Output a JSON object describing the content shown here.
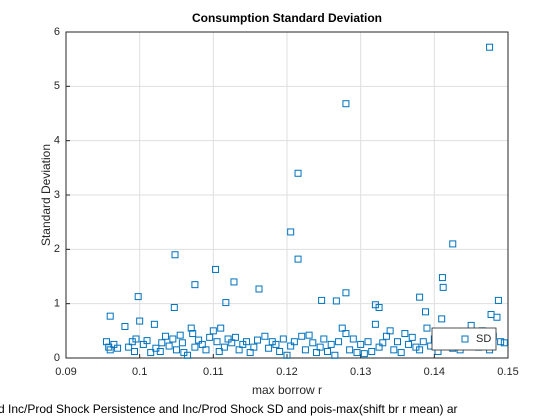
{
  "chart_data": {
    "type": "scatter",
    "title": "Consumption Standard Deviation",
    "xlabel": "max borrow r",
    "ylabel": "Standard Deviation",
    "annotations": [
      "d Inc/Prod Shock Persistence and Inc/Prod Shock SD and pois-max(shift br r mean) ar"
    ],
    "xlim": [
      0.09,
      0.15
    ],
    "xticks": [
      0.09,
      0.1,
      0.11,
      0.12,
      0.13,
      0.14,
      0.15
    ],
    "ylim": [
      0,
      6
    ],
    "yticks": [
      0,
      1,
      2,
      3,
      4,
      5,
      6
    ],
    "grid": true,
    "legend": "southeast",
    "series": [
      {
        "name": "SD",
        "color": "#0072bd",
        "x": [
          0.1475,
          0.128,
          0.1215,
          0.1205,
          0.1425,
          0.1215,
          0.1048,
          0.1103,
          0.1411,
          0.1128,
          0.1162,
          0.1412,
          0.1075,
          0.128,
          0.0998,
          0.1247,
          0.1267,
          0.138,
          0.1487,
          0.132,
          0.1325,
          0.1047,
          0.1117,
          0.096,
          0.1,
          0.0955,
          0.0958,
          0.096,
          0.0965,
          0.097,
          0.098,
          0.0985,
          0.099,
          0.0993,
          0.0995,
          0.1005,
          0.101,
          0.1015,
          0.102,
          0.1022,
          0.1028,
          0.103,
          0.1035,
          0.104,
          0.1045,
          0.105,
          0.1055,
          0.1058,
          0.106,
          0.1065,
          0.107,
          0.1072,
          0.1075,
          0.108,
          0.1085,
          0.109,
          0.1095,
          0.11,
          0.1105,
          0.1108,
          0.111,
          0.1115,
          0.112,
          0.1125,
          0.113,
          0.1135,
          0.114,
          0.1145,
          0.115,
          0.1155,
          0.116,
          0.117,
          0.1175,
          0.118,
          0.1185,
          0.119,
          0.1195,
          0.12,
          0.1205,
          0.121,
          0.122,
          0.1225,
          0.123,
          0.1235,
          0.124,
          0.1245,
          0.125,
          0.1255,
          0.126,
          0.1265,
          0.127,
          0.1275,
          0.128,
          0.1285,
          0.129,
          0.1295,
          0.13,
          0.1305,
          0.131,
          0.1315,
          0.132,
          0.1325,
          0.133,
          0.1335,
          0.134,
          0.1345,
          0.135,
          0.1355,
          0.136,
          0.1365,
          0.137,
          0.1375,
          0.138,
          0.1385,
          0.139,
          0.1395,
          0.14,
          0.1405,
          0.141,
          0.1415,
          0.142,
          0.1425,
          0.143,
          0.1435,
          0.144,
          0.1445,
          0.145,
          0.1455,
          0.146,
          0.1465,
          0.147,
          0.1475,
          0.148,
          0.1485,
          0.149,
          0.1495,
          0.1477,
          0.1388
        ],
        "values": [
          5.72,
          4.68,
          3.4,
          2.32,
          2.1,
          1.82,
          1.9,
          1.63,
          1.48,
          1.4,
          1.27,
          1.3,
          1.35,
          1.2,
          1.13,
          1.06,
          1.05,
          1.12,
          1.06,
          0.98,
          0.93,
          0.93,
          1.02,
          0.77,
          0.68,
          0.3,
          0.2,
          0.15,
          0.25,
          0.18,
          0.58,
          0.2,
          0.3,
          0.12,
          0.35,
          0.25,
          0.32,
          0.1,
          0.62,
          0.18,
          0.12,
          0.28,
          0.4,
          0.22,
          0.35,
          0.15,
          0.42,
          0.28,
          0.1,
          0.05,
          0.55,
          0.45,
          0.2,
          0.33,
          0.25,
          0.15,
          0.38,
          0.5,
          0.3,
          0.12,
          0.55,
          0.2,
          0.35,
          0.28,
          0.38,
          0.15,
          0.25,
          0.3,
          0.1,
          0.2,
          0.33,
          0.4,
          0.18,
          0.3,
          0.25,
          0.12,
          0.35,
          0.05,
          0.22,
          0.3,
          0.4,
          0.15,
          0.42,
          0.28,
          0.1,
          0.2,
          0.35,
          0.12,
          0.25,
          0.05,
          0.3,
          0.55,
          0.45,
          0.15,
          0.35,
          0.1,
          0.25,
          0.08,
          0.3,
          0.12,
          0.62,
          0.2,
          0.28,
          0.4,
          0.5,
          0.15,
          0.3,
          0.1,
          0.45,
          0.25,
          0.38,
          0.2,
          0.15,
          0.3,
          0.55,
          0.22,
          0.35,
          0.12,
          0.72,
          0.28,
          0.4,
          0.18,
          0.3,
          0.15,
          0.45,
          0.25,
          0.6,
          0.35,
          0.2,
          0.5,
          0.3,
          0.15,
          0.4,
          0.75,
          0.3,
          0.28,
          0.8,
          0.85
        ]
      }
    ]
  }
}
